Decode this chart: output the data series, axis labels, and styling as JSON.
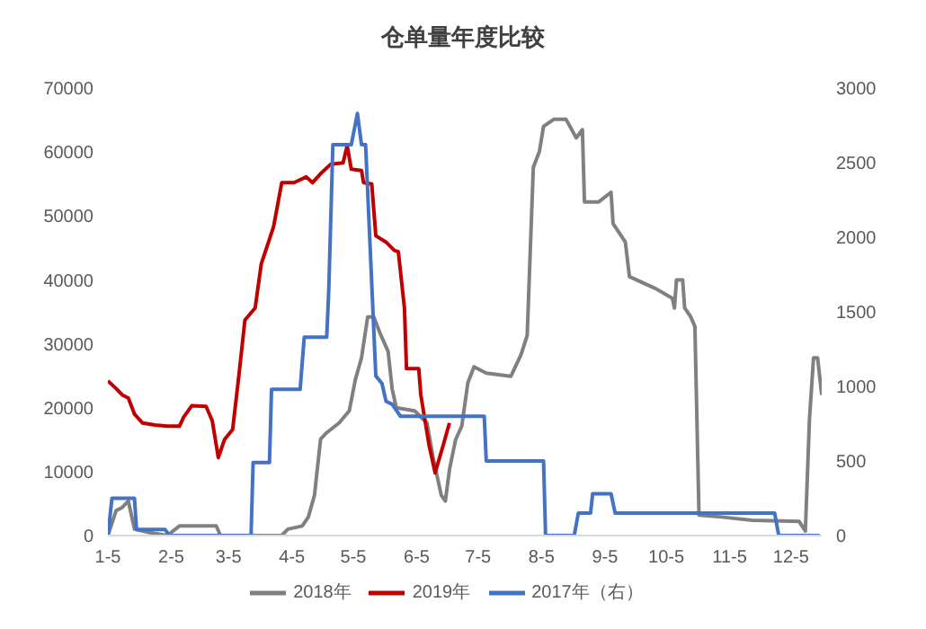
{
  "chart_data": {
    "type": "line",
    "title": "仓单量年度比较",
    "xlim": [
      "--01-05",
      "--12-20"
    ],
    "xticks": [
      {
        "value": "--01-05",
        "label": "1-5"
      },
      {
        "value": "--02-05",
        "label": "2-5"
      },
      {
        "value": "--03-05",
        "label": "3-5"
      },
      {
        "value": "--04-05",
        "label": "4-5"
      },
      {
        "value": "--05-05",
        "label": "5-5"
      },
      {
        "value": "--06-05",
        "label": "6-5"
      },
      {
        "value": "--07-05",
        "label": "7-5"
      },
      {
        "value": "--08-05",
        "label": "8-5"
      },
      {
        "value": "--09-05",
        "label": "9-5"
      },
      {
        "value": "--10-05",
        "label": "10-5"
      },
      {
        "value": "--11-05",
        "label": "11-5"
      },
      {
        "value": "--12-05",
        "label": "12-5"
      }
    ],
    "ylim": [
      0,
      70000
    ],
    "yticks": [
      0,
      10000,
      20000,
      30000,
      40000,
      50000,
      60000,
      70000
    ],
    "y2lim": [
      0,
      3000
    ],
    "y2ticks": [
      0,
      500,
      1000,
      1500,
      2000,
      2500,
      3000
    ],
    "grid": false,
    "legend": "bottom",
    "marker": "none",
    "line_style": "solid",
    "series": [
      {
        "name": "2018年",
        "color": "#808080",
        "x": [
          "--01-05",
          "--01-09",
          "--01-12",
          "--01-15",
          "--01-18",
          "--01-25",
          "--02-03",
          "--02-09",
          "--02-27",
          "--03-01",
          "--03-31",
          "--04-03",
          "--04-10",
          "--04-13",
          "--04-16",
          "--04-19",
          "--04-22",
          "--04-28",
          "--05-03",
          "--05-06",
          "--05-09",
          "--05-12",
          "--05-15",
          "--05-18",
          "--05-22",
          "--05-24",
          "--05-26",
          "--06-04",
          "--06-10",
          "--06-13",
          "--06-17",
          "--06-19",
          "--06-21",
          "--06-24",
          "--06-27",
          "--06-30",
          "--07-03",
          "--07-09",
          "--07-21",
          "--07-26",
          "--07-29",
          "--08-01",
          "--08-04",
          "--08-06",
          "--08-11",
          "--08-17",
          "--08-22",
          "--08-25",
          "--08-26",
          "--09-02",
          "--09-08",
          "--09-09",
          "--09-15",
          "--09-17",
          "--09-30",
          "--10-08",
          "--10-09",
          "--10-10",
          "--10-13",
          "--10-14",
          "--10-17",
          "--10-19",
          "--10-21",
          "--11-01",
          "--11-16",
          "--12-09",
          "--12-12",
          "--12-14",
          "--12-16",
          "--12-18",
          "--12-20"
        ],
        "values": [
          0,
          3900,
          4400,
          5400,
          1000,
          500,
          0,
          1500,
          1500,
          0,
          0,
          1000,
          1500,
          2900,
          6300,
          15100,
          16100,
          17600,
          19500,
          24400,
          27800,
          34200,
          34200,
          31700,
          28800,
          22900,
          20000,
          19500,
          17600,
          12200,
          6300,
          5400,
          10300,
          15000,
          17100,
          23900,
          26400,
          25400,
          24900,
          28300,
          31300,
          57600,
          60100,
          64000,
          65100,
          65100,
          62200,
          63500,
          52200,
          52200,
          53700,
          48800,
          45900,
          40500,
          38600,
          37100,
          35600,
          40000,
          40000,
          35600,
          34200,
          32700,
          3200,
          2900,
          2400,
          2200,
          700,
          18100,
          27800,
          27800,
          22000
        ]
      },
      {
        "name": "2019年",
        "color": "#c00000",
        "x": [
          "--01-05",
          "--01-09",
          "--01-12",
          "--01-15",
          "--01-18",
          "--01-22",
          "--01-28",
          "--02-03",
          "--02-09",
          "--02-11",
          "--02-15",
          "--02-22",
          "--02-25",
          "--02-28",
          "--03-03",
          "--03-07",
          "--03-10",
          "--03-13",
          "--03-18",
          "--03-21",
          "--03-27",
          "--03-31",
          "--04-06",
          "--04-12",
          "--04-15",
          "--04-19",
          "--04-24",
          "--04-30",
          "--05-02",
          "--05-04",
          "--05-09",
          "--05-10",
          "--05-14",
          "--05-16",
          "--05-21",
          "--05-25",
          "--05-27",
          "--05-30",
          "--05-31",
          "--06-06",
          "--06-07",
          "--06-11",
          "--06-14",
          "--06-18",
          "--06-21"
        ],
        "values": [
          24200,
          23000,
          22000,
          21500,
          19000,
          17600,
          17300,
          17100,
          17100,
          18500,
          20300,
          20200,
          18000,
          12200,
          15000,
          16600,
          24900,
          33700,
          35600,
          42500,
          48300,
          55200,
          55200,
          56100,
          55200,
          56600,
          58100,
          58300,
          61000,
          57300,
          57100,
          55200,
          55000,
          46900,
          45900,
          44600,
          44400,
          35600,
          26100,
          26100,
          22000,
          14200,
          9800,
          14200,
          17600
        ]
      },
      {
        "name": "2017年（右）",
        "color": "#4472c4",
        "axis": "y2",
        "x": [
          "--01-05",
          "--01-07",
          "--01-18",
          "--01-19",
          "--02-02",
          "--02-04",
          "--03-16",
          "--03-17",
          "--03-25",
          "--03-26",
          "--04-09",
          "--04-11",
          "--04-22",
          "--04-23",
          "--04-25",
          "--05-04",
          "--05-07",
          "--05-09",
          "--05-11",
          "--05-16",
          "--05-19",
          "--05-21",
          "--05-24",
          "--05-28",
          "--07-08",
          "--07-09",
          "--08-06",
          "--08-07",
          "--08-21",
          "--08-23",
          "--08-29",
          "--08-30",
          "--09-08",
          "--09-10",
          "--11-27",
          "--11-29",
          "--12-19"
        ],
        "values": [
          0,
          250,
          250,
          40,
          40,
          0,
          0,
          490,
          490,
          980,
          980,
          1330,
          1330,
          1650,
          2620,
          2620,
          2830,
          2620,
          2620,
          1070,
          1020,
          900,
          880,
          800,
          800,
          500,
          500,
          0,
          0,
          150,
          150,
          280,
          280,
          150,
          150,
          0,
          0
        ]
      }
    ]
  }
}
